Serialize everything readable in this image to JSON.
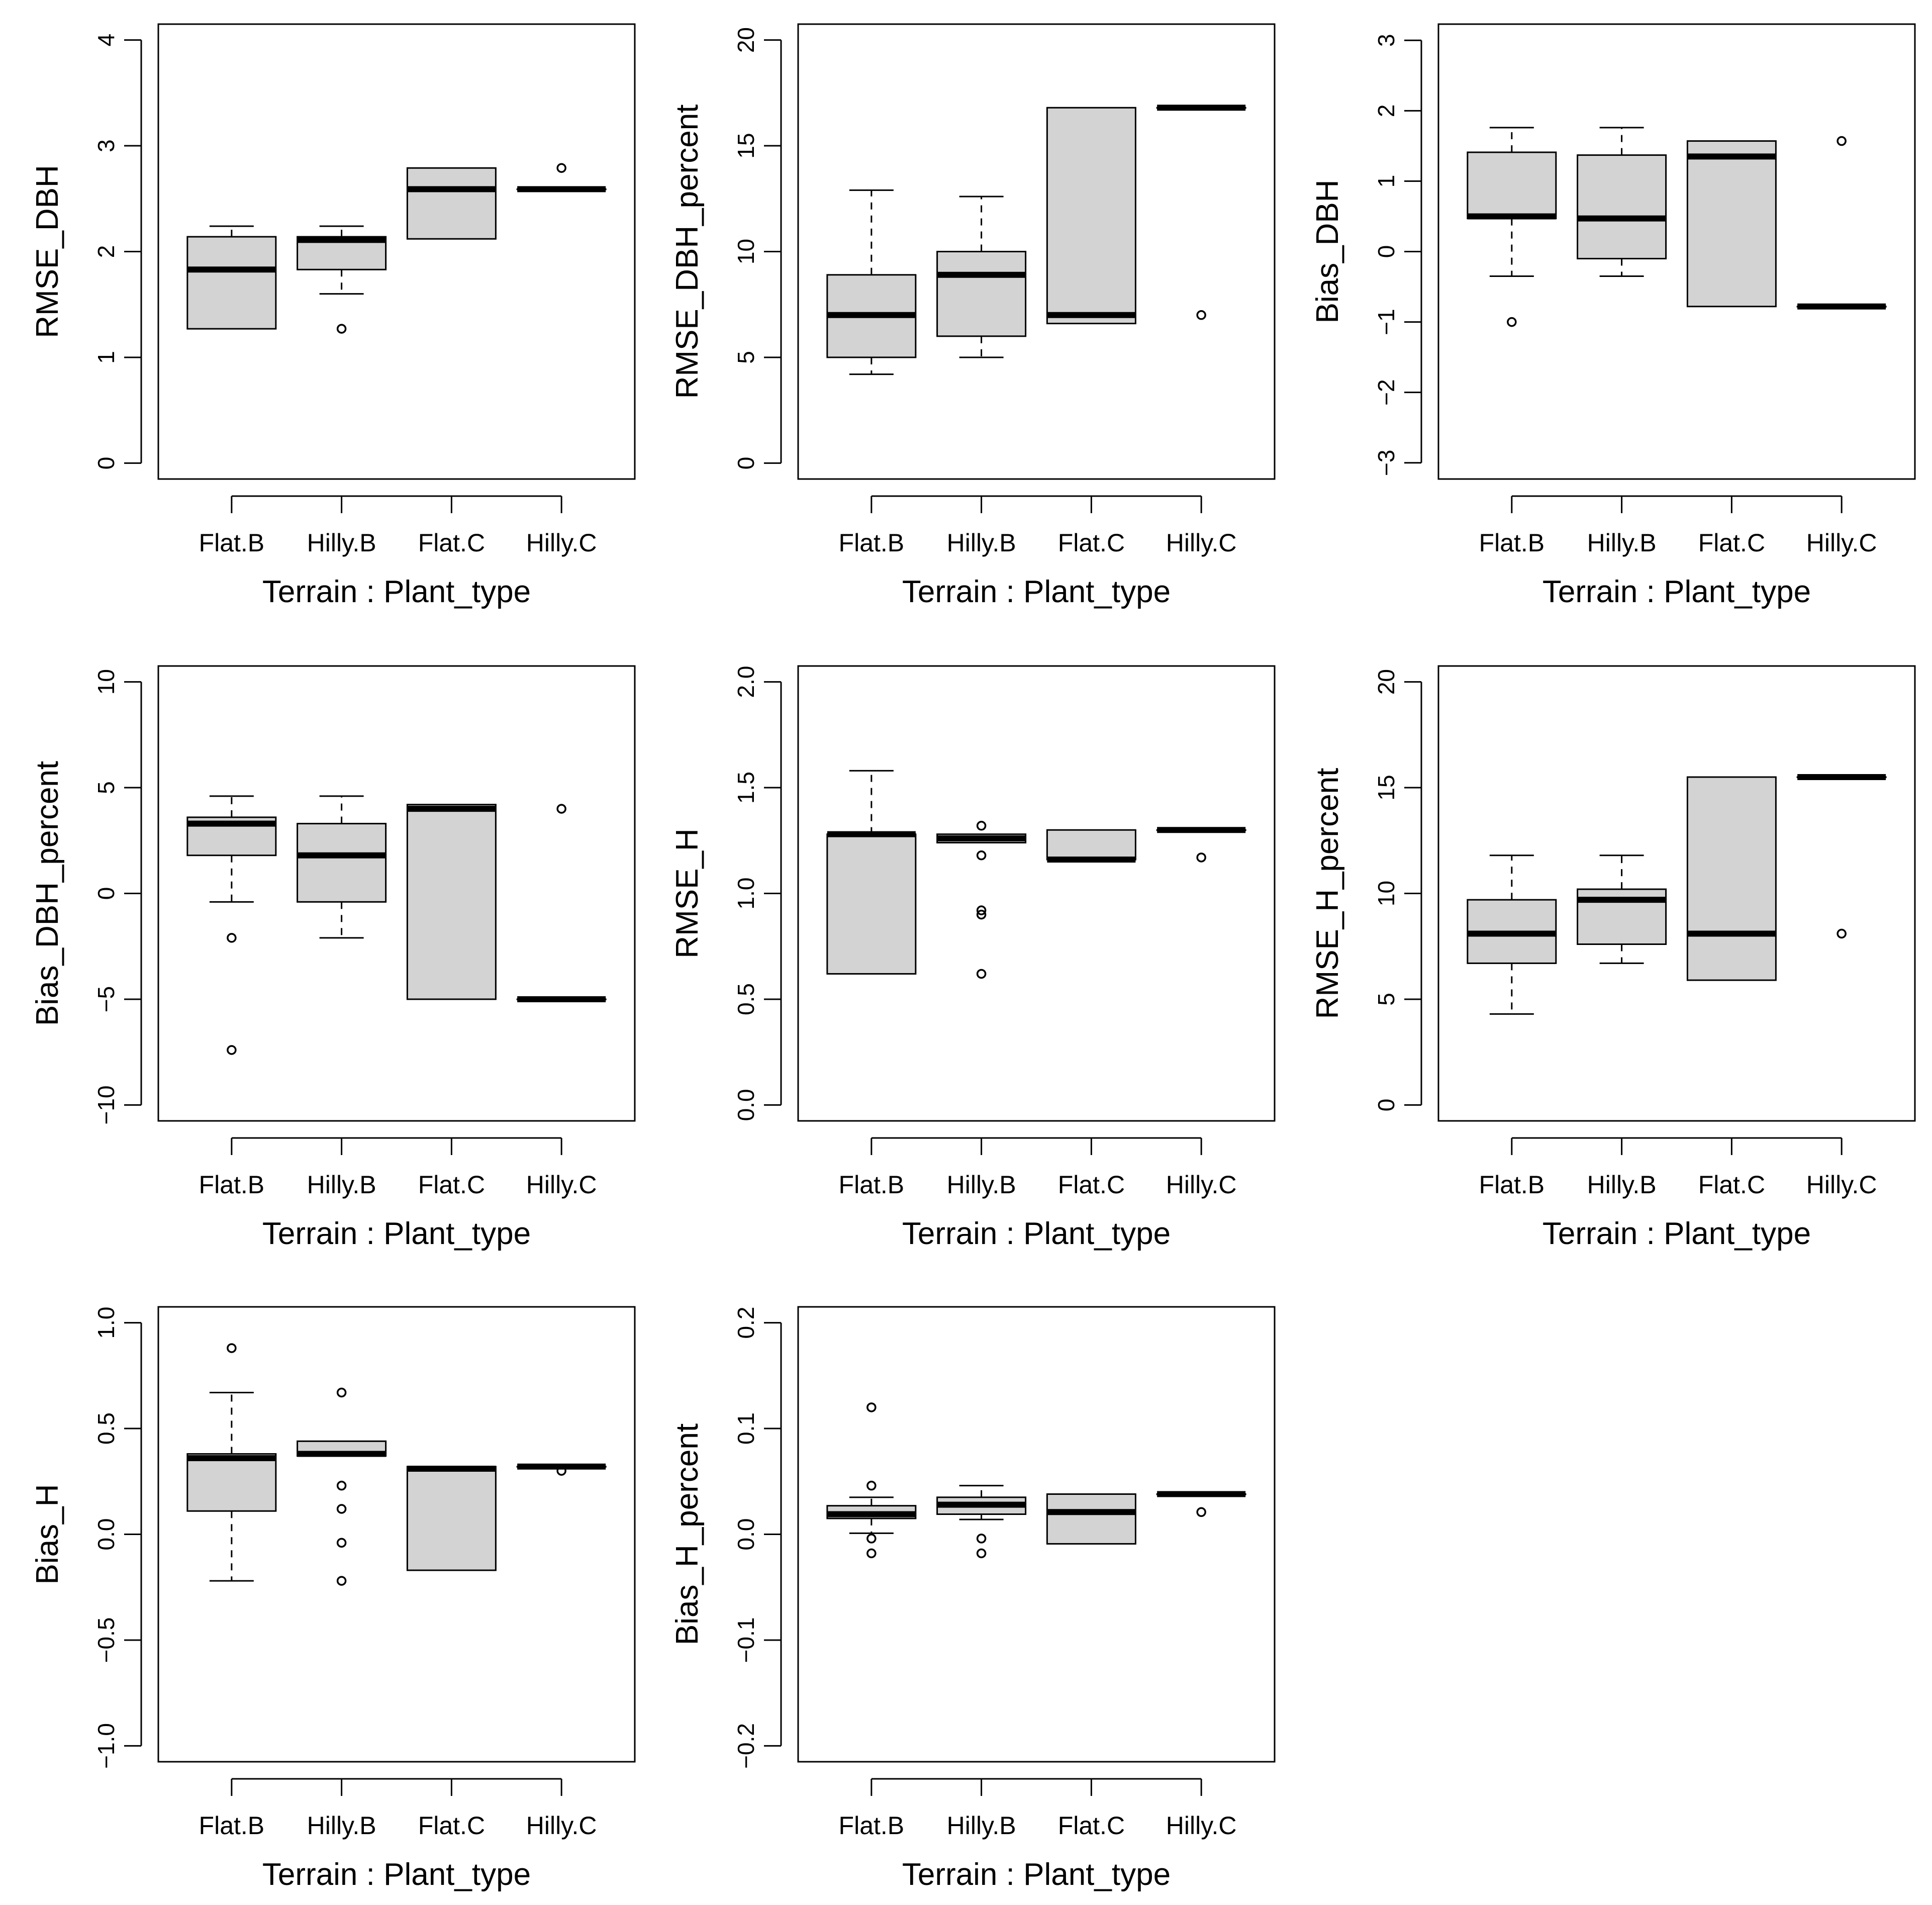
{
  "figure": {
    "colors": {
      "box_fill": "#d3d3d3",
      "stroke": "#000000",
      "background": "#ffffff"
    }
  },
  "chart_data": [
    {
      "type": "boxplot",
      "xlabel": "Terrain : Plant_type",
      "ylabel": "RMSE_DBH",
      "categories": [
        "Flat.B",
        "Hilly.B",
        "Flat.C",
        "Hilly.C"
      ],
      "ylim": [
        -0.15,
        4.15
      ],
      "yticks": [
        0,
        1,
        2,
        3,
        4
      ],
      "tick_labels": [
        "0",
        "1",
        "2",
        "3",
        "4"
      ],
      "boxes": [
        {
          "whisker_low": 1.27,
          "q1": 1.27,
          "median": 1.83,
          "q3": 2.14,
          "whisker_high": 2.24,
          "outliers": []
        },
        {
          "whisker_low": 1.6,
          "q1": 1.83,
          "median": 2.11,
          "q3": 2.14,
          "whisker_high": 2.24,
          "outliers": [
            1.27
          ]
        },
        {
          "whisker_low": 2.12,
          "q1": 2.12,
          "median": 2.59,
          "q3": 2.79,
          "whisker_high": 2.79,
          "outliers": []
        },
        {
          "whisker_low": 2.59,
          "q1": 2.59,
          "median": 2.59,
          "q3": 2.59,
          "whisker_high": 2.59,
          "outliers": [
            2.79
          ]
        }
      ]
    },
    {
      "type": "boxplot",
      "xlabel": "Terrain : Plant_type",
      "ylabel": "RMSE_DBH_percent",
      "categories": [
        "Flat.B",
        "Hilly.B",
        "Flat.C",
        "Hilly.C"
      ],
      "ylim": [
        -0.75,
        20.75
      ],
      "yticks": [
        0,
        5,
        10,
        15,
        20
      ],
      "tick_labels": [
        "0",
        "5",
        "10",
        "15",
        "20"
      ],
      "boxes": [
        {
          "whisker_low": 4.2,
          "q1": 5.0,
          "median": 7.0,
          "q3": 8.9,
          "whisker_high": 12.9,
          "outliers": []
        },
        {
          "whisker_low": 5.0,
          "q1": 6.0,
          "median": 8.9,
          "q3": 10.0,
          "whisker_high": 12.6,
          "outliers": []
        },
        {
          "whisker_low": 6.6,
          "q1": 6.6,
          "median": 7.0,
          "q3": 16.8,
          "whisker_high": 16.8,
          "outliers": []
        },
        {
          "whisker_low": 16.8,
          "q1": 16.8,
          "median": 16.8,
          "q3": 16.8,
          "whisker_high": 16.8,
          "outliers": [
            7.0
          ]
        }
      ]
    },
    {
      "type": "boxplot",
      "xlabel": "Terrain : Plant_type",
      "ylabel": "Bias_DBH",
      "categories": [
        "Flat.B",
        "Hilly.B",
        "Flat.C",
        "Hilly.C"
      ],
      "ylim": [
        -3.23,
        3.23
      ],
      "yticks": [
        -3,
        -2,
        -1,
        0,
        1,
        2,
        3
      ],
      "tick_labels": [
        "−3",
        "−2",
        "−1",
        "0",
        "1",
        "2",
        "3"
      ],
      "boxes": [
        {
          "whisker_low": -0.35,
          "q1": 0.47,
          "median": 0.5,
          "q3": 1.41,
          "whisker_high": 1.76,
          "outliers": [
            -1.0
          ]
        },
        {
          "whisker_low": -0.35,
          "q1": -0.1,
          "median": 0.47,
          "q3": 1.37,
          "whisker_high": 1.76,
          "outliers": []
        },
        {
          "whisker_low": -0.78,
          "q1": -0.78,
          "median": 1.35,
          "q3": 1.57,
          "whisker_high": 1.57,
          "outliers": []
        },
        {
          "whisker_low": -0.78,
          "q1": -0.78,
          "median": -0.78,
          "q3": -0.78,
          "whisker_high": -0.78,
          "outliers": [
            1.57
          ]
        }
      ]
    },
    {
      "type": "boxplot",
      "xlabel": "Terrain : Plant_type",
      "ylabel": "Bias_DBH_percent",
      "categories": [
        "Flat.B",
        "Hilly.B",
        "Flat.C",
        "Hilly.C"
      ],
      "ylim": [
        -10.75,
        10.75
      ],
      "yticks": [
        -10,
        -5,
        0,
        5,
        10
      ],
      "tick_labels": [
        "−10",
        "−5",
        "0",
        "5",
        "10"
      ],
      "boxes": [
        {
          "whisker_low": -0.4,
          "q1": 1.8,
          "median": 3.3,
          "q3": 3.6,
          "whisker_high": 4.6,
          "outliers": [
            -2.1,
            -7.4
          ]
        },
        {
          "whisker_low": -2.1,
          "q1": -0.4,
          "median": 1.8,
          "q3": 3.3,
          "whisker_high": 4.6,
          "outliers": []
        },
        {
          "whisker_low": -5.0,
          "q1": -5.0,
          "median": 4.0,
          "q3": 4.2,
          "whisker_high": 4.2,
          "outliers": []
        },
        {
          "whisker_low": -5.0,
          "q1": -5.0,
          "median": -5.0,
          "q3": -5.0,
          "whisker_high": -5.0,
          "outliers": [
            4.0
          ]
        }
      ]
    },
    {
      "type": "boxplot",
      "xlabel": "Terrain : Plant_type",
      "ylabel": "RMSE_H",
      "categories": [
        "Flat.B",
        "Hilly.B",
        "Flat.C",
        "Hilly.C"
      ],
      "ylim": [
        -0.075,
        2.075
      ],
      "yticks": [
        0.0,
        0.5,
        1.0,
        1.5,
        2.0
      ],
      "tick_labels": [
        "0.0",
        "0.5",
        "1.0",
        "1.5",
        "2.0"
      ],
      "boxes": [
        {
          "whisker_low": 0.62,
          "q1": 0.62,
          "median": 1.28,
          "q3": 1.28,
          "whisker_high": 1.58,
          "outliers": []
        },
        {
          "whisker_low": 1.24,
          "q1": 1.24,
          "median": 1.26,
          "q3": 1.28,
          "whisker_high": 1.28,
          "outliers": [
            1.32,
            1.18,
            0.92,
            0.9,
            0.62
          ]
        },
        {
          "whisker_low": 1.16,
          "q1": 1.16,
          "median": 1.16,
          "q3": 1.3,
          "whisker_high": 1.3,
          "outliers": []
        },
        {
          "whisker_low": 1.3,
          "q1": 1.3,
          "median": 1.3,
          "q3": 1.3,
          "whisker_high": 1.3,
          "outliers": [
            1.17
          ]
        }
      ]
    },
    {
      "type": "boxplot",
      "xlabel": "Terrain : Plant_type",
      "ylabel": "RMSE_H_percent",
      "categories": [
        "Flat.B",
        "Hilly.B",
        "Flat.C",
        "Hilly.C"
      ],
      "ylim": [
        -0.75,
        20.75
      ],
      "yticks": [
        0,
        5,
        10,
        15,
        20
      ],
      "tick_labels": [
        "0",
        "5",
        "10",
        "15",
        "20"
      ],
      "boxes": [
        {
          "whisker_low": 4.3,
          "q1": 6.7,
          "median": 8.1,
          "q3": 9.7,
          "whisker_high": 11.8,
          "outliers": []
        },
        {
          "whisker_low": 6.7,
          "q1": 7.6,
          "median": 9.7,
          "q3": 10.2,
          "whisker_high": 11.8,
          "outliers": []
        },
        {
          "whisker_low": 5.9,
          "q1": 5.9,
          "median": 8.1,
          "q3": 15.5,
          "whisker_high": 15.5,
          "outliers": []
        },
        {
          "whisker_low": 15.5,
          "q1": 15.5,
          "median": 15.5,
          "q3": 15.5,
          "whisker_high": 15.5,
          "outliers": [
            8.1
          ]
        }
      ]
    },
    {
      "type": "boxplot",
      "xlabel": "Terrain : Plant_type",
      "ylabel": "Bias_H",
      "categories": [
        "Flat.B",
        "Hilly.B",
        "Flat.C",
        "Hilly.C"
      ],
      "ylim": [
        -1.075,
        1.075
      ],
      "yticks": [
        -1.0,
        -0.5,
        0.0,
        0.5,
        1.0
      ],
      "tick_labels": [
        "−1.0",
        "−0.5",
        "0.0",
        "0.5",
        "1.0"
      ],
      "boxes": [
        {
          "whisker_low": -0.22,
          "q1": 0.11,
          "median": 0.36,
          "q3": 0.38,
          "whisker_high": 0.67,
          "outliers": [
            0.88
          ]
        },
        {
          "whisker_low": 0.37,
          "q1": 0.37,
          "median": 0.38,
          "q3": 0.44,
          "whisker_high": 0.44,
          "outliers": [
            0.67,
            0.23,
            0.12,
            -0.04,
            -0.22
          ]
        },
        {
          "whisker_low": -0.17,
          "q1": -0.17,
          "median": 0.31,
          "q3": 0.32,
          "whisker_high": 0.32,
          "outliers": []
        },
        {
          "whisker_low": 0.32,
          "q1": 0.32,
          "median": 0.32,
          "q3": 0.32,
          "whisker_high": 0.32,
          "outliers": [
            0.3
          ]
        }
      ]
    },
    {
      "type": "boxplot",
      "xlabel": "Terrain : Plant_type",
      "ylabel": "Bias_H_percent",
      "categories": [
        "Flat.B",
        "Hilly.B",
        "Flat.C",
        "Hilly.C"
      ],
      "ylim": [
        -0.215,
        0.215
      ],
      "yticks": [
        -0.2,
        -0.1,
        0.0,
        0.1,
        0.2
      ],
      "tick_labels": [
        "−0.2",
        "−0.1",
        "0.0",
        "0.1",
        "0.2"
      ],
      "boxes": [
        {
          "whisker_low": 0.001,
          "q1": 0.015,
          "median": 0.019,
          "q3": 0.027,
          "whisker_high": 0.035,
          "outliers": [
            0.12,
            0.046,
            -0.004,
            -0.018
          ]
        },
        {
          "whisker_low": 0.014,
          "q1": 0.019,
          "median": 0.028,
          "q3": 0.035,
          "whisker_high": 0.046,
          "outliers": [
            -0.004,
            -0.018
          ]
        },
        {
          "whisker_low": -0.009,
          "q1": -0.009,
          "median": 0.021,
          "q3": 0.038,
          "whisker_high": 0.038,
          "outliers": []
        },
        {
          "whisker_low": 0.038,
          "q1": 0.038,
          "median": 0.038,
          "q3": 0.038,
          "whisker_high": 0.038,
          "outliers": [
            0.021
          ]
        }
      ]
    }
  ]
}
